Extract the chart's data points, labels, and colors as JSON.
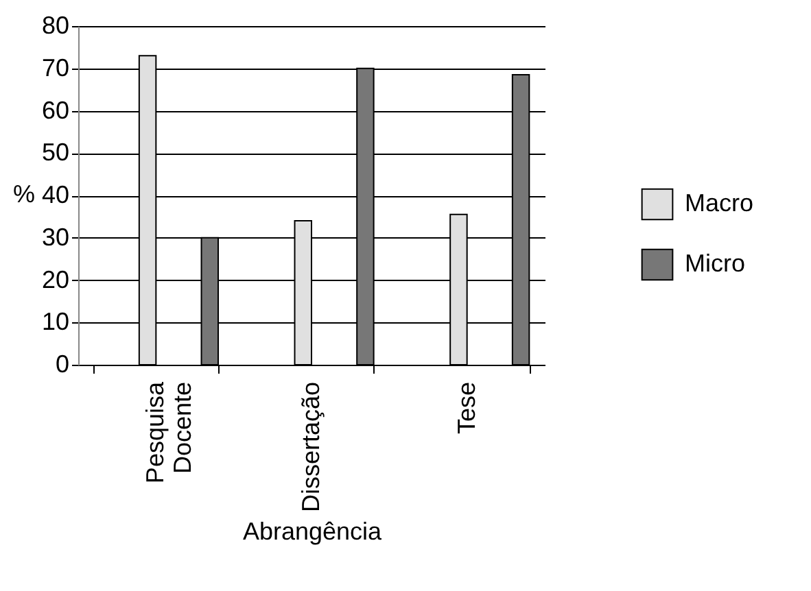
{
  "chart_data": {
    "type": "bar",
    "xlabel": "Abrangência",
    "ylabel": "%",
    "categories": [
      "Pesquisa Docente",
      "Dissertação",
      "Tese"
    ],
    "series": [
      {
        "name": "Macro",
        "color": "#e0e0e0",
        "values": [
          73,
          34,
          35.5
        ]
      },
      {
        "name": "Micro",
        "color": "#777777",
        "values": [
          30,
          70,
          68.5
        ]
      }
    ],
    "ylim": [
      0,
      80
    ],
    "yticks": [
      0,
      10,
      20,
      30,
      40,
      50,
      60,
      70,
      80
    ],
    "grid": "y",
    "legend": "right"
  }
}
